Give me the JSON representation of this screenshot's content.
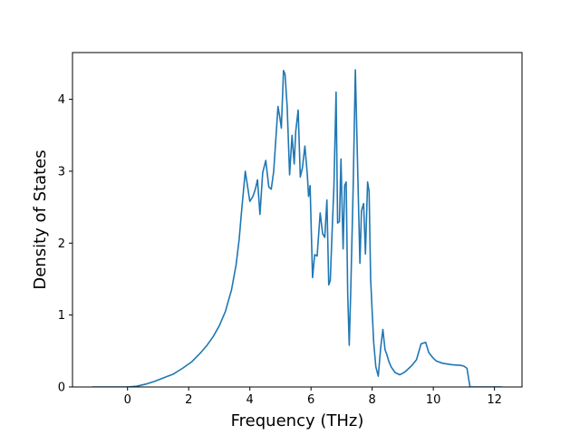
{
  "chart_data": {
    "type": "line",
    "title": "",
    "xlabel": "Frequency (THz)",
    "ylabel": "Density of States",
    "xlim": [
      -1.8,
      12.9
    ],
    "ylim": [
      0,
      4.65
    ],
    "xticks": [
      0,
      2,
      4,
      6,
      8,
      10,
      12
    ],
    "xtick_labels": [
      "0",
      "2",
      "4",
      "6",
      "8",
      "10",
      "12"
    ],
    "yticks": [
      0,
      1,
      2,
      3,
      4
    ],
    "ytick_labels": [
      "0",
      "1",
      "2",
      "3",
      "4"
    ],
    "grid": false,
    "legend": "none",
    "series": [
      {
        "color": "#1f77b4",
        "x": [
          -1.15,
          -0.6,
          0.0,
          0.3,
          0.6,
          0.9,
          1.2,
          1.5,
          1.8,
          2.1,
          2.4,
          2.6,
          2.8,
          3.0,
          3.2,
          3.4,
          3.55,
          3.65,
          3.72,
          3.85,
          4.0,
          4.1,
          4.18,
          4.25,
          4.33,
          4.42,
          4.52,
          4.62,
          4.7,
          4.78,
          4.85,
          4.92,
          4.98,
          5.03,
          5.1,
          5.15,
          5.22,
          5.3,
          5.38,
          5.45,
          5.5,
          5.58,
          5.65,
          5.72,
          5.8,
          5.88,
          5.92,
          5.97,
          6.05,
          6.12,
          6.2,
          6.3,
          6.38,
          6.45,
          6.52,
          6.58,
          6.63,
          6.68,
          6.75,
          6.82,
          6.87,
          6.93,
          6.98,
          7.05,
          7.1,
          7.15,
          7.2,
          7.25,
          7.3,
          7.38,
          7.45,
          7.55,
          7.6,
          7.65,
          7.72,
          7.78,
          7.85,
          7.9,
          7.95,
          8.0,
          8.05,
          8.12,
          8.2,
          8.28,
          8.35,
          8.42,
          8.48,
          8.55,
          8.62,
          8.75,
          8.9,
          9.0,
          9.1,
          9.2,
          9.3,
          9.45,
          9.6,
          9.75,
          9.85,
          9.92,
          10.0,
          10.1,
          10.3,
          10.6,
          10.9,
          11.0,
          11.1,
          11.2,
          11.3,
          11.6,
          12.25
        ],
        "y": [
          0.0,
          0.0,
          0.0,
          0.01,
          0.04,
          0.08,
          0.13,
          0.18,
          0.26,
          0.35,
          0.48,
          0.58,
          0.7,
          0.85,
          1.05,
          1.35,
          1.7,
          2.05,
          2.4,
          3.0,
          2.58,
          2.65,
          2.75,
          2.88,
          2.4,
          2.98,
          3.15,
          2.78,
          2.75,
          3.0,
          3.45,
          3.9,
          3.75,
          3.6,
          4.4,
          4.35,
          3.9,
          2.95,
          3.5,
          3.1,
          3.55,
          3.85,
          2.92,
          3.05,
          3.35,
          2.95,
          2.65,
          2.8,
          1.52,
          1.84,
          1.82,
          2.42,
          2.13,
          2.08,
          2.6,
          1.42,
          1.48,
          2.05,
          2.8,
          4.1,
          2.28,
          2.3,
          3.17,
          1.92,
          2.8,
          2.85,
          1.3,
          0.58,
          1.35,
          2.8,
          4.41,
          2.6,
          1.72,
          2.45,
          2.55,
          1.85,
          2.85,
          2.72,
          1.5,
          1.05,
          0.62,
          0.28,
          0.15,
          0.55,
          0.8,
          0.52,
          0.45,
          0.35,
          0.28,
          0.2,
          0.17,
          0.19,
          0.22,
          0.26,
          0.3,
          0.38,
          0.6,
          0.62,
          0.48,
          0.44,
          0.4,
          0.36,
          0.33,
          0.31,
          0.3,
          0.29,
          0.26,
          0.0,
          0.0,
          0.0,
          0.0
        ]
      }
    ]
  }
}
